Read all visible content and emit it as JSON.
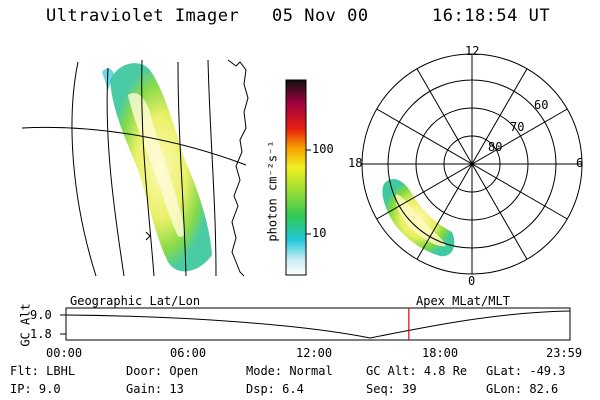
{
  "header": {
    "instrument": "Ultraviolet Imager",
    "date": "05 Nov 00",
    "time": "16:18:54 UT"
  },
  "colorbar": {
    "unit_label": "photon cm⁻²s⁻¹",
    "ticks": [
      "100",
      "10"
    ]
  },
  "polar": {
    "mlt_labels": [
      "12",
      "18",
      "6",
      "0"
    ],
    "lat_labels": [
      "60",
      "70",
      "80"
    ]
  },
  "timeline": {
    "left_caption": "Geographic Lat/Lon",
    "right_caption": "Apex MLat/MLT",
    "y_axis_label": "GC Alt",
    "y_ticks": [
      "9.0",
      "1.8"
    ],
    "x_ticks": [
      "00:00",
      "06:00",
      "12:00",
      "18:00",
      "23:59"
    ],
    "marker_time_hours": 16.315,
    "marker_color": "#e00000"
  },
  "info": {
    "row1": [
      {
        "key": "Flt:",
        "value": "LBHL"
      },
      {
        "key": "Door:",
        "value": "Open"
      },
      {
        "key": "Mode:",
        "value": "Normal"
      },
      {
        "key": "GC Alt:",
        "value": "4.8 Re"
      },
      {
        "key": "GLat:",
        "value": "-49.3"
      }
    ],
    "row2": [
      {
        "key": "IP:",
        "value": "9.0"
      },
      {
        "key": "Gain:",
        "value": "13"
      },
      {
        "key": "Dsp:",
        "value": "6.4"
      },
      {
        "key": "Seq:",
        "value": "39"
      },
      {
        "key": "GLon:",
        "value": "82.6"
      }
    ]
  }
}
